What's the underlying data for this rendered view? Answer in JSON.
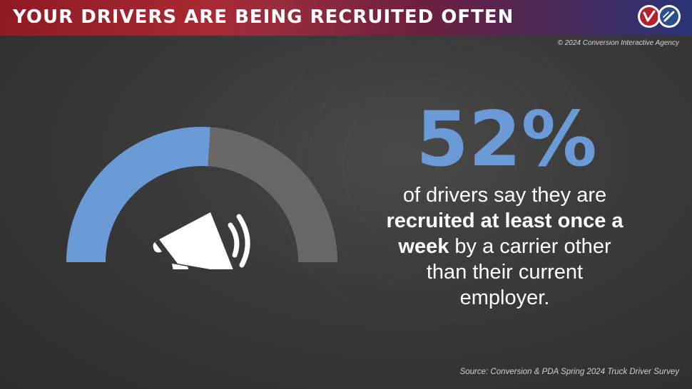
{
  "header": {
    "title": "YOUR DRIVERS ARE BEING RECRUITED OFTEN"
  },
  "copyright": "© 2024 Conversion Interactive Agency",
  "stat": {
    "value": "52%",
    "fraction": 0.52,
    "line1": "of drivers say they are",
    "bold": "recruited at least once a week",
    "line3": " by a carrier other than their current employer."
  },
  "source": "Source: Conversion & PDA Spring 2024 Truck Driver Survey",
  "colors": {
    "accent_blue": "#6b9bd6",
    "gauge_gray": "#6a6766",
    "header_red": "#a41f2b",
    "header_navy": "#2a3376"
  },
  "icons": {
    "megaphone": "megaphone-icon",
    "logo_left": "brand-logo-red",
    "logo_right": "brand-logo-blue"
  }
}
